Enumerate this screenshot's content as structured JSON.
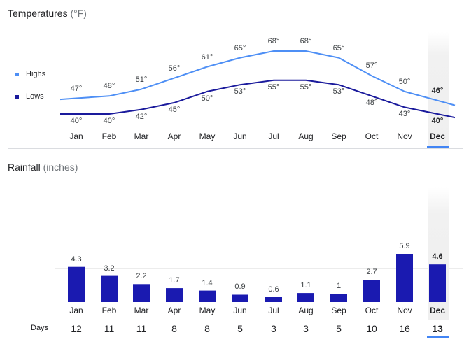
{
  "temperature": {
    "title": "Temperatures",
    "unit": "(°F)",
    "legend": {
      "highs_label": "Highs",
      "lows_label": "Lows"
    },
    "colors": {
      "highs": "#4e8ff5",
      "lows": "#1a1a9c"
    },
    "months": [
      "Jan",
      "Feb",
      "Mar",
      "Apr",
      "May",
      "Jun",
      "Jul",
      "Aug",
      "Sep",
      "Oct",
      "Nov",
      "Dec"
    ],
    "highs": [
      47,
      48,
      51,
      56,
      61,
      65,
      68,
      68,
      65,
      57,
      50,
      46
    ],
    "lows": [
      40,
      40,
      42,
      45,
      50,
      53,
      55,
      55,
      53,
      48,
      43,
      40
    ],
    "high_labels": [
      "47°",
      "48°",
      "51°",
      "56°",
      "61°",
      "65°",
      "68°",
      "68°",
      "65°",
      "57°",
      "50°",
      "46°"
    ],
    "low_labels": [
      "40°",
      "40°",
      "42°",
      "45°",
      "50°",
      "53°",
      "55°",
      "55°",
      "53°",
      "48°",
      "43°",
      "40°"
    ],
    "selected_month": "Dec"
  },
  "rainfall": {
    "title": "Rainfall",
    "unit": "(inches)",
    "color": "#1a1ab0",
    "months": [
      "Jan",
      "Feb",
      "Mar",
      "Apr",
      "May",
      "Jun",
      "Jul",
      "Aug",
      "Sep",
      "Oct",
      "Nov",
      "Dec"
    ],
    "values": [
      4.3,
      3.2,
      2.2,
      1.7,
      1.4,
      0.9,
      0.6,
      1.1,
      1,
      2.7,
      5.9,
      4.6
    ],
    "value_labels": [
      "4.3",
      "3.2",
      "2.2",
      "1.7",
      "1.4",
      "0.9",
      "0.6",
      "1.1",
      "1",
      "2.7",
      "5.9",
      "4.6"
    ]
  },
  "days": {
    "title": "Days",
    "values": [
      "12",
      "11",
      "11",
      "8",
      "8",
      "5",
      "3",
      "3",
      "5",
      "10",
      "16",
      "13"
    ]
  },
  "chart_data": [
    {
      "type": "line",
      "title": "Temperatures (°F)",
      "x": [
        "Jan",
        "Feb",
        "Mar",
        "Apr",
        "May",
        "Jun",
        "Jul",
        "Aug",
        "Sep",
        "Oct",
        "Nov",
        "Dec"
      ],
      "series": [
        {
          "name": "Highs",
          "values": [
            47,
            48,
            51,
            56,
            61,
            65,
            68,
            68,
            65,
            57,
            50,
            46
          ]
        },
        {
          "name": "Lows",
          "values": [
            40,
            40,
            42,
            45,
            50,
            53,
            55,
            55,
            53,
            48,
            43,
            40
          ]
        }
      ],
      "legend": "left",
      "grid": false
    },
    {
      "type": "bar",
      "title": "Rainfall (inches)",
      "categories": [
        "Jan",
        "Feb",
        "Mar",
        "Apr",
        "May",
        "Jun",
        "Jul",
        "Aug",
        "Sep",
        "Oct",
        "Nov",
        "Dec"
      ],
      "values": [
        4.3,
        3.2,
        2.2,
        1.7,
        1.4,
        0.9,
        0.6,
        1.1,
        1,
        2.7,
        5.9,
        4.6
      ],
      "ylim": [
        0,
        6
      ],
      "grid": true
    }
  ]
}
